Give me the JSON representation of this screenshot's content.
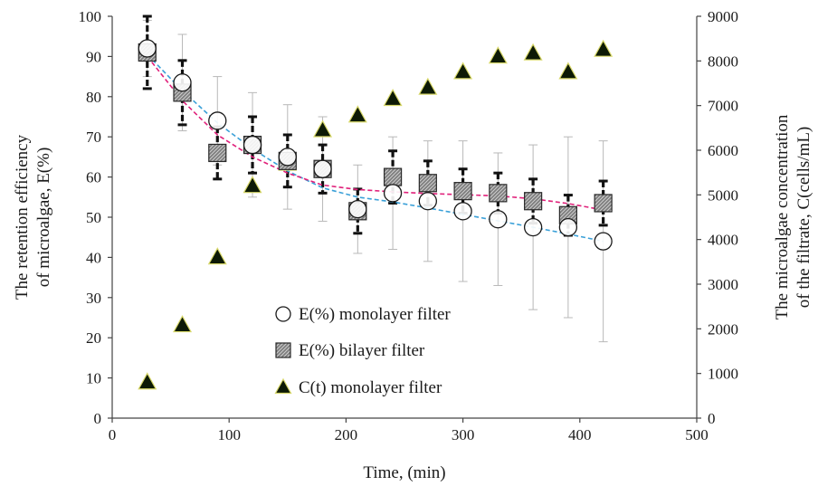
{
  "chart_data": {
    "type": "scatter",
    "xlabel": "Time, (min)",
    "ylabel": "The retention efficiency of microalgae, E(%)",
    "ylabel_lines": [
      "The retention efficiency",
      "of microalgae, E(%)"
    ],
    "y2label": "The microalgae concentration of the filtrate, C(cells/mL)",
    "y2label_lines": [
      "The microalgae concentration",
      "of the filtrate, C(cells/mL)"
    ],
    "xlim": [
      0,
      500
    ],
    "ylim": [
      0,
      100
    ],
    "y2lim": [
      0,
      9000
    ],
    "xticks": [
      "0",
      "100",
      "200",
      "300",
      "400",
      "500"
    ],
    "yticks": [
      "0",
      "10",
      "20",
      "30",
      "40",
      "50",
      "60",
      "70",
      "80",
      "90",
      "100"
    ],
    "y2ticks": [
      "0",
      "1000",
      "2000",
      "3000",
      "4000",
      "5000",
      "6000",
      "7000",
      "8000",
      "9000"
    ],
    "grid": false,
    "legend_position": "lower-left-center",
    "series": [
      {
        "name": "E(%) monolayer filter",
        "marker": "open-circle",
        "axis": "left",
        "x": [
          30,
          60,
          90,
          120,
          150,
          180,
          210,
          240,
          270,
          300,
          330,
          360,
          390,
          420
        ],
        "y": [
          92,
          83.5,
          74,
          68,
          65,
          62,
          52,
          56,
          54,
          51.5,
          49.5,
          47.5,
          47.5,
          44
        ],
        "err": [
          7,
          12,
          11,
          13,
          13,
          13,
          11,
          14,
          15,
          17.5,
          16.5,
          20.5,
          22.5,
          25
        ]
      },
      {
        "name": "E(%) bilayer filter",
        "marker": "hatched-square",
        "axis": "left",
        "x": [
          30,
          60,
          90,
          120,
          150,
          180,
          210,
          240,
          270,
          300,
          330,
          360,
          390,
          420
        ],
        "y": [
          91,
          81,
          66,
          68,
          64,
          62,
          51.5,
          60,
          58.5,
          56.5,
          56,
          54,
          50.5,
          53.5
        ],
        "err": [
          9,
          8,
          6.5,
          7,
          6.5,
          6,
          5.5,
          6.5,
          5.5,
          5.5,
          5,
          5.5,
          5,
          5.5
        ]
      },
      {
        "name": "C(t) monolayer filter",
        "marker": "filled-triangle",
        "axis": "right",
        "x": [
          30,
          60,
          90,
          120,
          150,
          180,
          210,
          240,
          270,
          300,
          330,
          360,
          390,
          420
        ],
        "y": [
          800,
          2080,
          3600,
          5200,
          5700,
          6450,
          6780,
          7150,
          7400,
          7750,
          8100,
          8170,
          7750,
          8250
        ]
      }
    ],
    "trendlines": [
      {
        "series": "E(%) monolayer filter",
        "style": "dashed",
        "color": "#3aa0d8",
        "x": [
          30,
          60,
          90,
          120,
          150,
          180,
          210,
          240,
          270,
          300,
          330,
          360,
          390,
          420
        ],
        "y": [
          90.5,
          81.5,
          73.5,
          67,
          61.5,
          57.3,
          55,
          53.8,
          52.3,
          50.7,
          49.1,
          47.5,
          45.8,
          44
        ]
      },
      {
        "series": "E(%) bilayer filter",
        "style": "dashed",
        "color": "#e0207a",
        "x": [
          30,
          60,
          90,
          120,
          150,
          180,
          210,
          240,
          270,
          300,
          330,
          360,
          390,
          420
        ],
        "y": [
          90,
          79,
          70.5,
          65,
          61,
          58,
          56.9,
          56.3,
          55.9,
          55.6,
          55.3,
          54.6,
          53.4,
          51.8
        ]
      }
    ],
    "legend": {
      "entries": [
        "E(%) monolayer filter",
        "E(%) bilayer filter",
        "C(t) monolayer filter"
      ]
    },
    "colors": {
      "axis": "#444444",
      "error_bar_monolayer": "#b8b8b8",
      "error_bar_bilayer": "#111111",
      "square_fill": "#8c8c8c",
      "triangle_fill": "#0d1a06",
      "triangle_edge": "#d8d86a"
    }
  }
}
